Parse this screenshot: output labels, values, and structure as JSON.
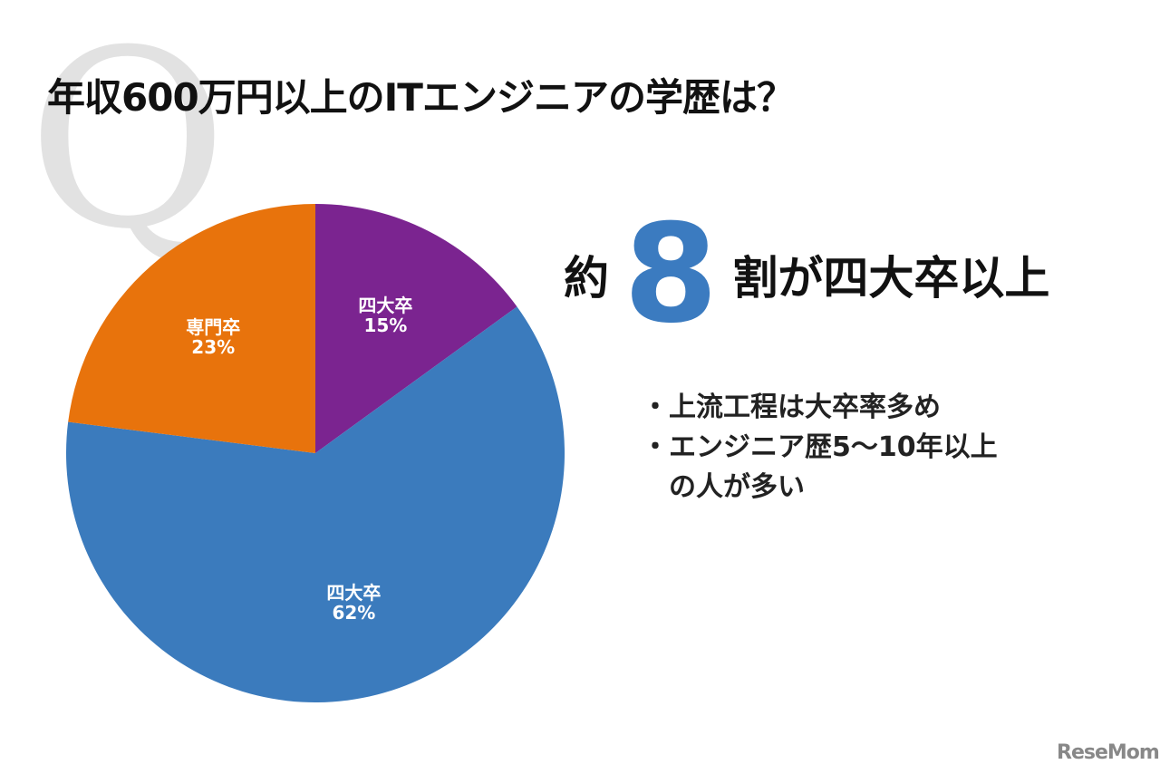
{
  "title": "年収600万円以上のITエンジニアの学歴は？",
  "watermark_letter": "Q",
  "headline": {
    "pre": "約",
    "number": "8",
    "post": "割が四大卒以上"
  },
  "bullets": [
    "上流工程は大卒率多め",
    "エンジニア歴5〜10年以上の人が多い"
  ],
  "bullet_lines": [
    [
      "上流工程は大卒率多め"
    ],
    [
      "エンジニア歴5〜10年以上",
      "の人が多い"
    ]
  ],
  "bullet_mark": "・",
  "logo": "ReseMom",
  "chart_data": {
    "type": "pie",
    "title": "",
    "slices": [
      {
        "label": "四大卒",
        "value": 15,
        "color": "#7b2490"
      },
      {
        "label": "四大卒",
        "value": 62,
        "color": "#3b7bbd"
      },
      {
        "label": "専門卒",
        "value": 23,
        "color": "#e8730c"
      }
    ],
    "start": "12 o'clock, clockwise"
  }
}
